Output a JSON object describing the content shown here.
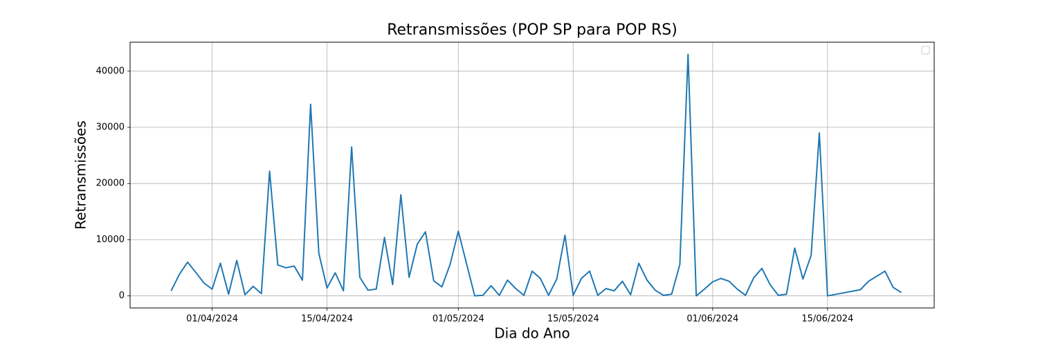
{
  "chart_data": {
    "type": "line",
    "title": "Retransmissões (POP SP para POP RS)",
    "x_label": "Dia do Ano",
    "y_label": "Retransmissões",
    "x": [
      "2024-03-27",
      "2024-03-28",
      "2024-03-29",
      "2024-03-30",
      "2024-03-31",
      "2024-04-01",
      "2024-04-02",
      "2024-04-03",
      "2024-04-04",
      "2024-04-05",
      "2024-04-06",
      "2024-04-07",
      "2024-04-08",
      "2024-04-09",
      "2024-04-10",
      "2024-04-11",
      "2024-04-12",
      "2024-04-13",
      "2024-04-14",
      "2024-04-15",
      "2024-04-16",
      "2024-04-17",
      "2024-04-18",
      "2024-04-19",
      "2024-04-20",
      "2024-04-21",
      "2024-04-22",
      "2024-04-23",
      "2024-04-24",
      "2024-04-25",
      "2024-04-26",
      "2024-04-27",
      "2024-04-28",
      "2024-04-29",
      "2024-04-30",
      "2024-05-01",
      "2024-05-03",
      "2024-05-04",
      "2024-05-05",
      "2024-05-06",
      "2024-05-07",
      "2024-05-08",
      "2024-05-09",
      "2024-05-10",
      "2024-05-11",
      "2024-05-12",
      "2024-05-13",
      "2024-05-14",
      "2024-05-15",
      "2024-05-16",
      "2024-05-17",
      "2024-05-18",
      "2024-05-19",
      "2024-05-20",
      "2024-05-21",
      "2024-05-22",
      "2024-05-23",
      "2024-05-24",
      "2024-05-25",
      "2024-05-26",
      "2024-05-27",
      "2024-05-28",
      "2024-05-29",
      "2024-05-30",
      "2024-05-31",
      "2024-06-01",
      "2024-06-02",
      "2024-06-03",
      "2024-06-04",
      "2024-06-05",
      "2024-06-06",
      "2024-06-07",
      "2024-06-08",
      "2024-06-09",
      "2024-06-10",
      "2024-06-11",
      "2024-06-12",
      "2024-06-13",
      "2024-06-14",
      "2024-06-15",
      "2024-06-19",
      "2024-06-20",
      "2024-06-22",
      "2024-06-23",
      "2024-06-24"
    ],
    "series": [
      {
        "name": "Retransmissões",
        "color": "#1f77b4",
        "values": [
          900,
          3800,
          6000,
          4200,
          2300,
          1200,
          5800,
          300,
          6300,
          200,
          1700,
          400,
          22200,
          5500,
          5000,
          5300,
          2800,
          34100,
          7600,
          1400,
          4100,
          900,
          26500,
          3300,
          1000,
          1200,
          10400,
          2000,
          18000,
          3300,
          9200,
          11400,
          2700,
          1600,
          5600,
          11500,
          0,
          100,
          1800,
          100,
          2800,
          1300,
          100,
          4400,
          3100,
          100,
          3000,
          10800,
          100,
          3100,
          4400,
          100,
          1300,
          900,
          2600,
          200,
          5800,
          2800,
          1000,
          100,
          300,
          5600,
          43000,
          0,
          1200,
          2500,
          3100,
          2600,
          1200,
          100,
          3200,
          4900,
          2000,
          100,
          300,
          8500,
          3000,
          7200,
          29000,
          0,
          1100,
          2600,
          4400,
          1500,
          600
        ]
      }
    ],
    "xlim": [
      "2024-03-22",
      "2024-06-28"
    ],
    "xticks": [
      {
        "value": "2024-04-01",
        "label": "01/04/2024"
      },
      {
        "value": "2024-04-15",
        "label": "15/04/2024"
      },
      {
        "value": "2024-05-01",
        "label": "01/05/2024"
      },
      {
        "value": "2024-05-15",
        "label": "15/05/2024"
      },
      {
        "value": "2024-06-01",
        "label": "01/06/2024"
      },
      {
        "value": "2024-06-15",
        "label": "15/06/2024"
      }
    ],
    "ylim": [
      -2150,
      45150
    ],
    "yticks": [
      0,
      10000,
      20000,
      30000,
      40000
    ],
    "grid": true
  }
}
